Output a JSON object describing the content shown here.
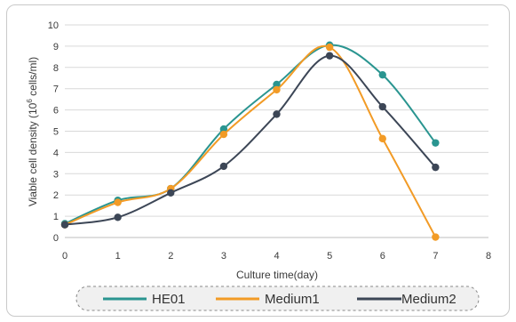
{
  "chart_data": {
    "type": "line",
    "title": "",
    "xlabel": "Culture time(day)",
    "ylabel_pre": "Viable cell density (10",
    "ylabel_sup": "6",
    "ylabel_post": " cells/ml)",
    "xlim": [
      0,
      8
    ],
    "ylim": [
      0,
      10
    ],
    "x_ticks": [
      "0",
      "1",
      "2",
      "3",
      "4",
      "5",
      "6",
      "7",
      "8"
    ],
    "y_ticks": [
      "0",
      "1",
      "2",
      "3",
      "4",
      "5",
      "6",
      "7",
      "8",
      "9",
      "10"
    ],
    "grid": "horizontal",
    "legend_position": "bottom",
    "series": [
      {
        "name": "HE01",
        "color": "#2a9590",
        "x": [
          0,
          1,
          2,
          3,
          4,
          5,
          6,
          7
        ],
        "values": [
          0.65,
          1.75,
          2.3,
          5.1,
          7.2,
          9.05,
          7.65,
          4.45
        ]
      },
      {
        "name": "Medium1",
        "color": "#f29b26",
        "x": [
          0,
          1,
          2,
          3,
          4,
          5,
          6,
          7
        ],
        "values": [
          0.6,
          1.65,
          2.3,
          4.85,
          6.95,
          8.95,
          4.65,
          0.02
        ]
      },
      {
        "name": "Medium2",
        "color": "#3c4656",
        "x": [
          0,
          1,
          2,
          3,
          4,
          5,
          6,
          7
        ],
        "values": [
          0.6,
          0.95,
          2.1,
          3.35,
          5.8,
          8.55,
          6.15,
          3.3
        ]
      }
    ]
  }
}
